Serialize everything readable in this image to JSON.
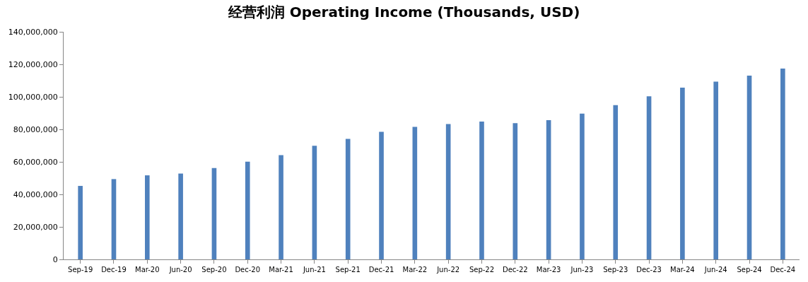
{
  "chart_data": {
    "type": "bar",
    "title": "经营利润 Operating Income (Thousands, USD)",
    "categories": [
      "Sep-19",
      "Dec-19",
      "Mar-20",
      "Jun-20",
      "Sep-20",
      "Dec-20",
      "Mar-21",
      "Jun-21",
      "Sep-21",
      "Dec-21",
      "Mar-22",
      "Jun-22",
      "Sep-22",
      "Dec-22",
      "Mar-23",
      "Jun-23",
      "Sep-23",
      "Dec-23",
      "Mar-24",
      "Jun-24",
      "Sep-24",
      "Dec-24"
    ],
    "values": [
      45200000,
      49400000,
      51700000,
      52800000,
      56200000,
      60100000,
      64100000,
      69900000,
      74100000,
      78500000,
      81500000,
      83300000,
      84800000,
      83800000,
      85600000,
      89700000,
      94900000,
      100300000,
      105700000,
      109300000,
      113000000,
      117400000
    ],
    "color": "#4f81bd",
    "ylim": [
      0,
      140000000
    ],
    "yticks": [
      {
        "value": 0,
        "label": "0"
      },
      {
        "value": 20000000,
        "label": "20,000,000"
      },
      {
        "value": 40000000,
        "label": "40,000,000"
      },
      {
        "value": 60000000,
        "label": "60,000,000"
      },
      {
        "value": 80000000,
        "label": "80,000,000"
      },
      {
        "value": 100000000,
        "label": "100,000,000"
      },
      {
        "value": 120000000,
        "label": "120,000,000"
      },
      {
        "value": 140000000,
        "label": "140,000,000"
      }
    ]
  }
}
